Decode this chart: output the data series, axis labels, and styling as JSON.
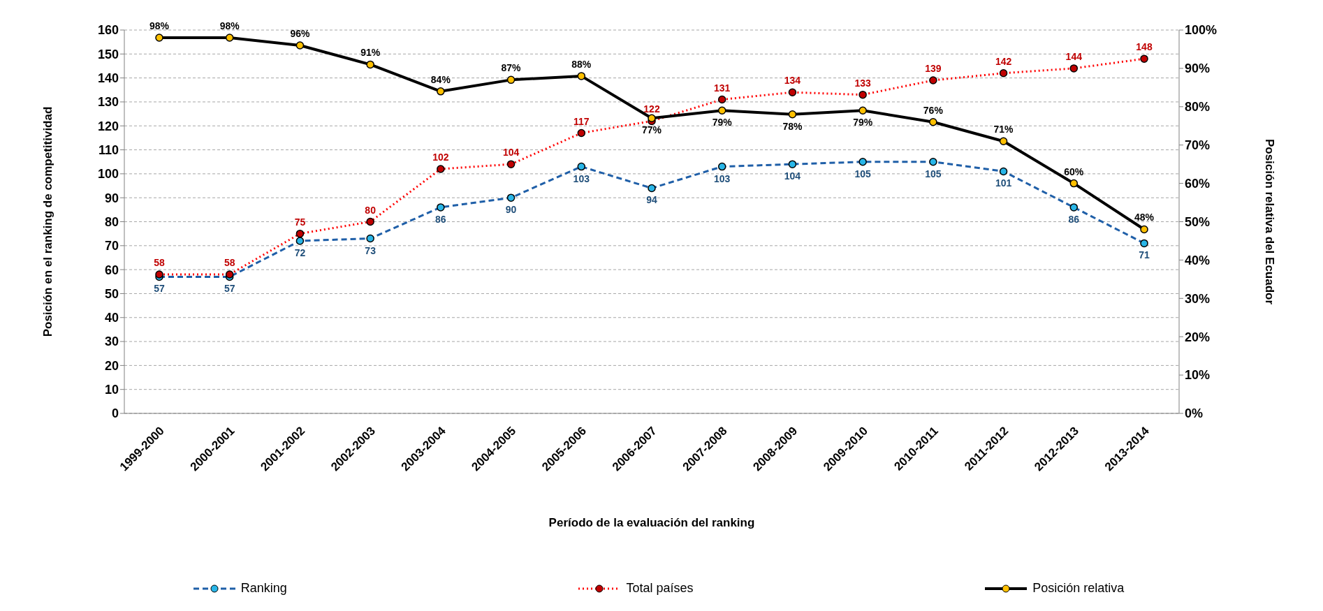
{
  "chart_data": {
    "type": "line",
    "xlabel": "Período de la evaluación del ranking",
    "ylabel": "Posición en el ranking de competitividad",
    "y2label": "Posición relativa del Ecuador",
    "categories": [
      "1999-2000",
      "2000-2001",
      "2001-2002",
      "2002-2003",
      "2003-2004",
      "2004-2005",
      "2005-2006",
      "2006-2007",
      "2007-2008",
      "2008-2009",
      "2009-2010",
      "2010-2011",
      "2011-2012",
      "2012-2013",
      "2013-2014"
    ],
    "series": [
      {
        "name": "Ranking",
        "color": "#1f5fa8",
        "line_style": "dashed",
        "values": [
          57,
          57,
          72,
          73,
          86,
          90,
          103,
          94,
          103,
          104,
          105,
          105,
          101,
          86,
          71
        ],
        "value_labels": [
          "57",
          "57",
          "72",
          "73",
          "86",
          "90",
          "103",
          "94",
          "103",
          "104",
          "105",
          "105",
          "101",
          "86",
          "71"
        ]
      },
      {
        "name": "Total países",
        "color": "#ff0000",
        "line_style": "dotted",
        "values": [
          58,
          58,
          75,
          80,
          102,
          104,
          117,
          122,
          131,
          134,
          133,
          139,
          142,
          144,
          148
        ],
        "value_labels": [
          "58",
          "58",
          "75",
          "80",
          "102",
          "104",
          "117",
          "122",
          "131",
          "134",
          "133",
          "139",
          "142",
          "144",
          "148"
        ]
      },
      {
        "name": "Posición relativa",
        "color": "#000000",
        "line_style": "solid",
        "axis": "y2",
        "values": [
          98,
          98,
          96,
          91,
          84,
          87,
          88,
          77,
          79,
          78,
          79,
          76,
          71,
          60,
          48
        ],
        "value_labels": [
          "98%",
          "98%",
          "96%",
          "91%",
          "84%",
          "87%",
          "88%",
          "77%",
          "79%",
          "78%",
          "79%",
          "76%",
          "71%",
          "60%",
          "48%"
        ]
      }
    ],
    "marker": "circle",
    "ylim": [
      0,
      160
    ],
    "yticks": [
      0,
      10,
      20,
      30,
      40,
      50,
      60,
      70,
      80,
      90,
      100,
      110,
      120,
      130,
      140,
      150,
      160
    ],
    "y2lim": [
      0,
      100
    ],
    "y2ticks": [
      {
        "value": 0,
        "label": "0%"
      },
      {
        "value": 10,
        "label": "10%"
      },
      {
        "value": 20,
        "label": "20%"
      },
      {
        "value": 30,
        "label": "30%"
      },
      {
        "value": 40,
        "label": "40%"
      },
      {
        "value": 50,
        "label": "50%"
      },
      {
        "value": 60,
        "label": "60%"
      },
      {
        "value": 70,
        "label": "70%"
      },
      {
        "value": 80,
        "label": "80%"
      },
      {
        "value": 90,
        "label": "90%"
      },
      {
        "value": 100,
        "label": "100%"
      }
    ],
    "grid": "y",
    "legend": "bottom"
  }
}
